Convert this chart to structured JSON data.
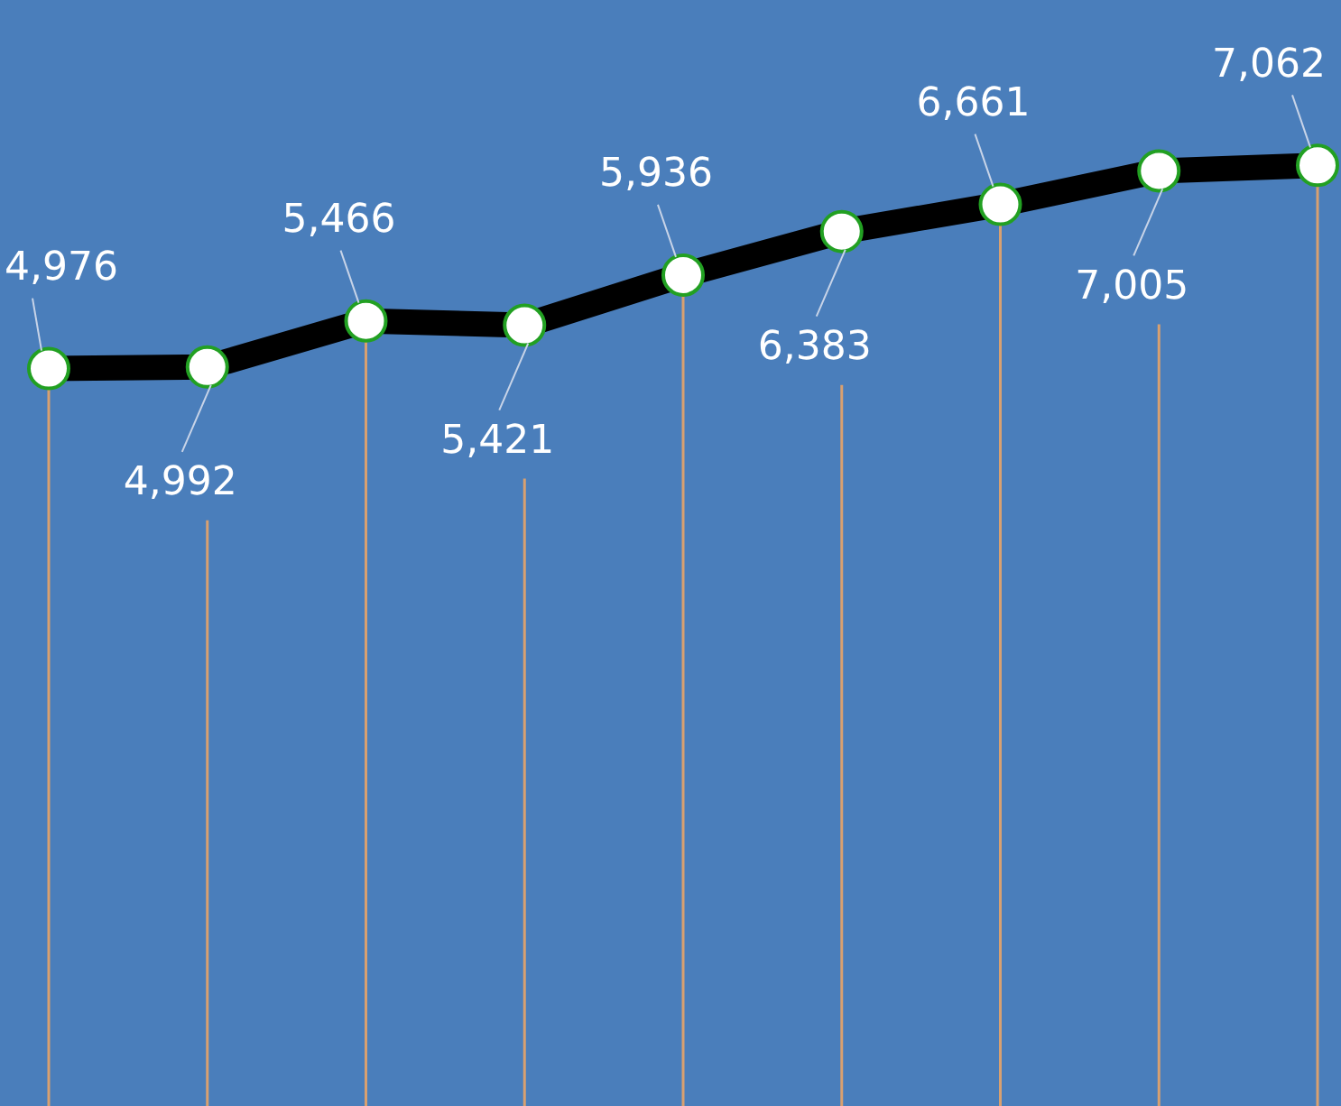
{
  "chart_data": {
    "type": "line",
    "categories": [
      null,
      null,
      null,
      null,
      null,
      null,
      null,
      null,
      null
    ],
    "series": [
      {
        "color": "#000000",
        "values": [
          4976,
          4992,
          5466,
          5421,
          5936,
          6383,
          6661,
          7005,
          7062
        ],
        "value_labels": [
          "4,976",
          "4,992",
          "5,466",
          "5,421",
          "5,936",
          "6,383",
          "6,661",
          "7,005",
          "7,062"
        ]
      }
    ],
    "marker": "circle",
    "line_style": "solid",
    "grid": "x",
    "legend": false,
    "tick_labels": false
  }
}
